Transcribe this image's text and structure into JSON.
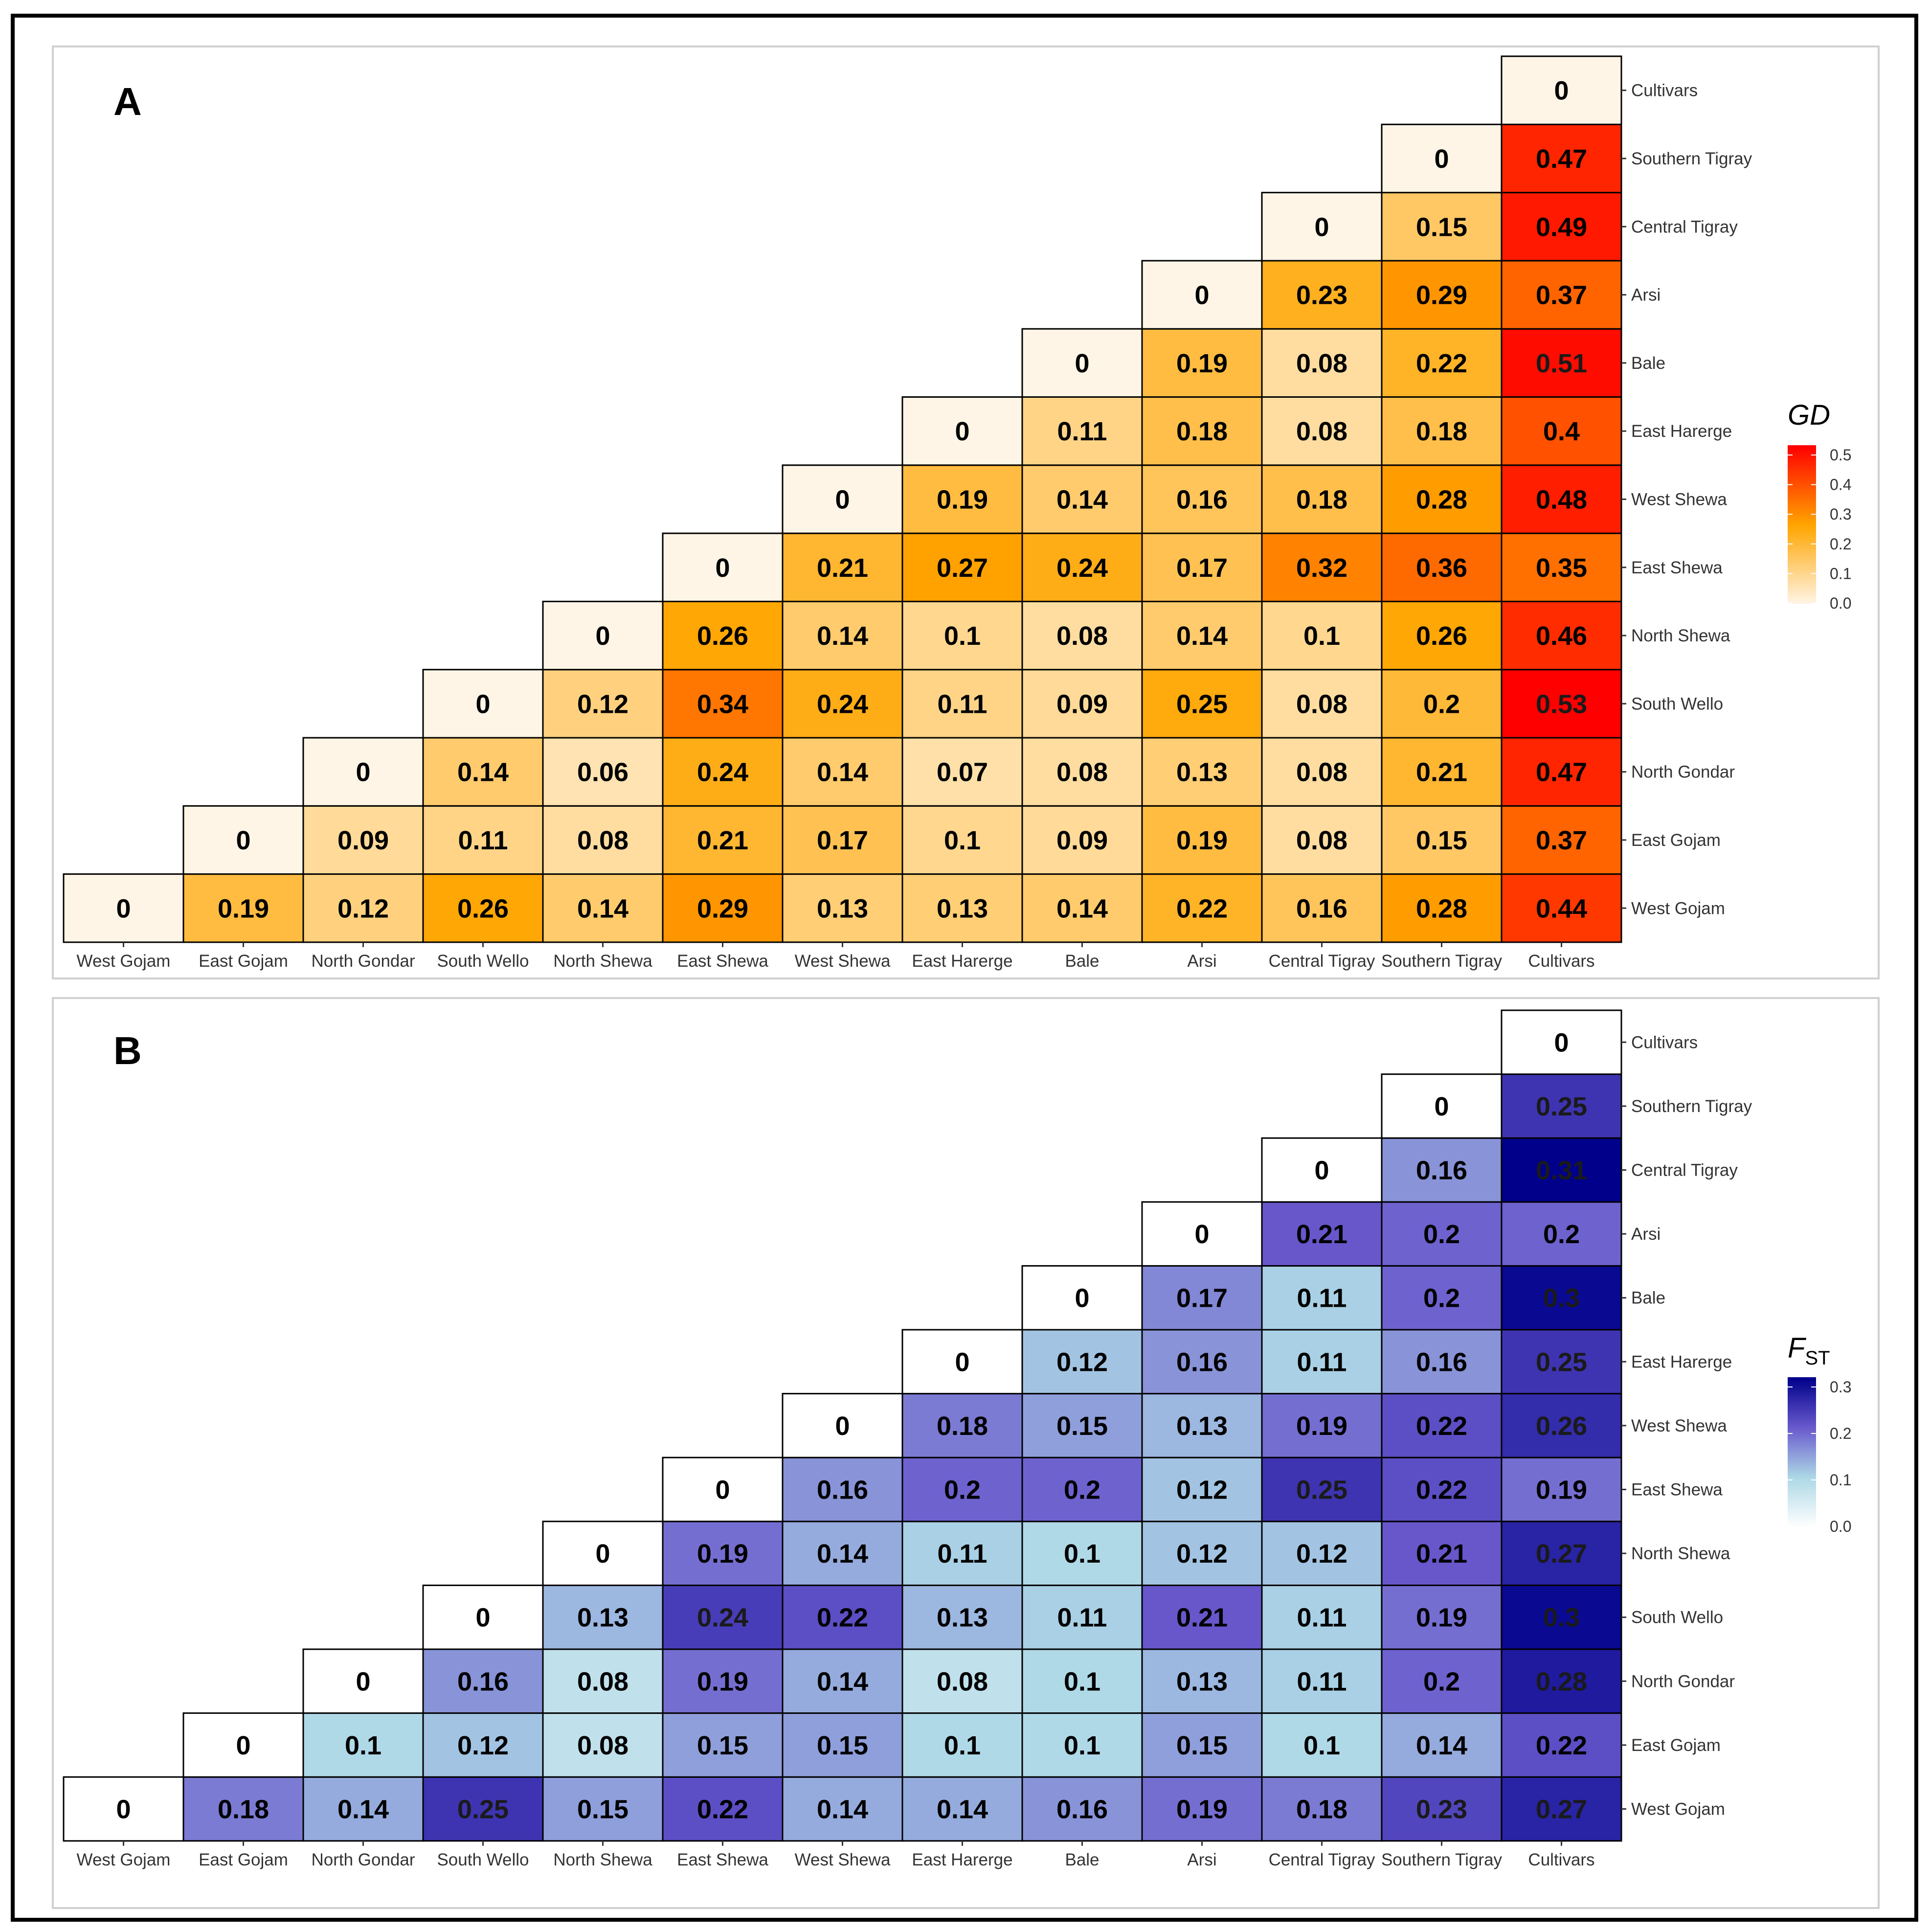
{
  "populations": [
    "West Gojam",
    "East Gojam",
    "North Gondar",
    "South Wello",
    "North Shewa",
    "East Shewa",
    "West Shewa",
    "East Harerge",
    "Bale",
    "Arsi",
    "Central Tigray",
    "Southern Tigray",
    "Cultivars"
  ],
  "chart_data": [
    {
      "type": "heatmap",
      "panel": "A",
      "legend_title": "GD",
      "legend_ticks": [
        "0.0",
        "0.1",
        "0.2",
        "0.3",
        "0.4",
        "0.5"
      ],
      "scale_max": 0.53,
      "colors": [
        "#fff5e6",
        "#ffa500",
        "#ff0000"
      ],
      "values": [
        [
          "0",
          "0.19",
          "0.12",
          "0.26",
          "0.14",
          "0.29",
          "0.13",
          "0.13",
          "0.14",
          "0.22",
          "0.16",
          "0.28",
          "0.44"
        ],
        [
          "0",
          "0.09",
          "0.11",
          "0.08",
          "0.21",
          "0.17",
          "0.1",
          "0.09",
          "0.19",
          "0.08",
          "0.15",
          "0.37"
        ],
        [
          "0",
          "0.14",
          "0.06",
          "0.24",
          "0.14",
          "0.07",
          "0.08",
          "0.13",
          "0.08",
          "0.21",
          "0.47"
        ],
        [
          "0",
          "0.12",
          "0.34",
          "0.24",
          "0.11",
          "0.09",
          "0.25",
          "0.08",
          "0.2",
          "0.53"
        ],
        [
          "0",
          "0.26",
          "0.14",
          "0.1",
          "0.08",
          "0.14",
          "0.1",
          "0.26",
          "0.46"
        ],
        [
          "0",
          "0.21",
          "0.27",
          "0.24",
          "0.17",
          "0.32",
          "0.36",
          "0.35"
        ],
        [
          "0",
          "0.19",
          "0.14",
          "0.16",
          "0.18",
          "0.28",
          "0.48"
        ],
        [
          "0",
          "0.11",
          "0.18",
          "0.08",
          "0.18",
          "0.4"
        ],
        [
          "0",
          "0.19",
          "0.08",
          "0.22",
          "0.51"
        ],
        [
          "0",
          "0.23",
          "0.29",
          "0.37"
        ],
        [
          "0",
          "0.15",
          "0.49"
        ],
        [
          "0",
          "0.47"
        ],
        [
          "0"
        ]
      ]
    },
    {
      "type": "heatmap",
      "panel": "B",
      "legend_title": "F",
      "legend_title_sub": "ST",
      "legend_ticks": [
        "0.0",
        "0.1",
        "0.2",
        "0.3"
      ],
      "scale_max": 0.31,
      "colors": [
        "#ffffff",
        "#add8e6",
        "#6a5acd",
        "#00008b"
      ],
      "values": [
        [
          "0",
          "0.18",
          "0.14",
          "0.25",
          "0.15",
          "0.22",
          "0.14",
          "0.14",
          "0.16",
          "0.19",
          "0.18",
          "0.23",
          "0.27"
        ],
        [
          "0",
          "0.1",
          "0.12",
          "0.08",
          "0.15",
          "0.15",
          "0.1",
          "0.1",
          "0.15",
          "0.1",
          "0.14",
          "0.22"
        ],
        [
          "0",
          "0.16",
          "0.08",
          "0.19",
          "0.14",
          "0.08",
          "0.1",
          "0.13",
          "0.11",
          "0.2",
          "0.28"
        ],
        [
          "0",
          "0.13",
          "0.24",
          "0.22",
          "0.13",
          "0.11",
          "0.21",
          "0.11",
          "0.19",
          "0.3"
        ],
        [
          "0",
          "0.19",
          "0.14",
          "0.11",
          "0.1",
          "0.12",
          "0.12",
          "0.21",
          "0.27"
        ],
        [
          "0",
          "0.16",
          "0.2",
          "0.2",
          "0.12",
          "0.25",
          "0.22",
          "0.19"
        ],
        [
          "0",
          "0.18",
          "0.15",
          "0.13",
          "0.19",
          "0.22",
          "0.26"
        ],
        [
          "0",
          "0.12",
          "0.16",
          "0.11",
          "0.16",
          "0.25"
        ],
        [
          "0",
          "0.17",
          "0.11",
          "0.2",
          "0.3"
        ],
        [
          "0",
          "0.21",
          "0.2",
          "0.2"
        ],
        [
          "0",
          "0.16",
          "0.31"
        ],
        [
          "0",
          "0.25"
        ],
        [
          "0"
        ]
      ]
    }
  ]
}
